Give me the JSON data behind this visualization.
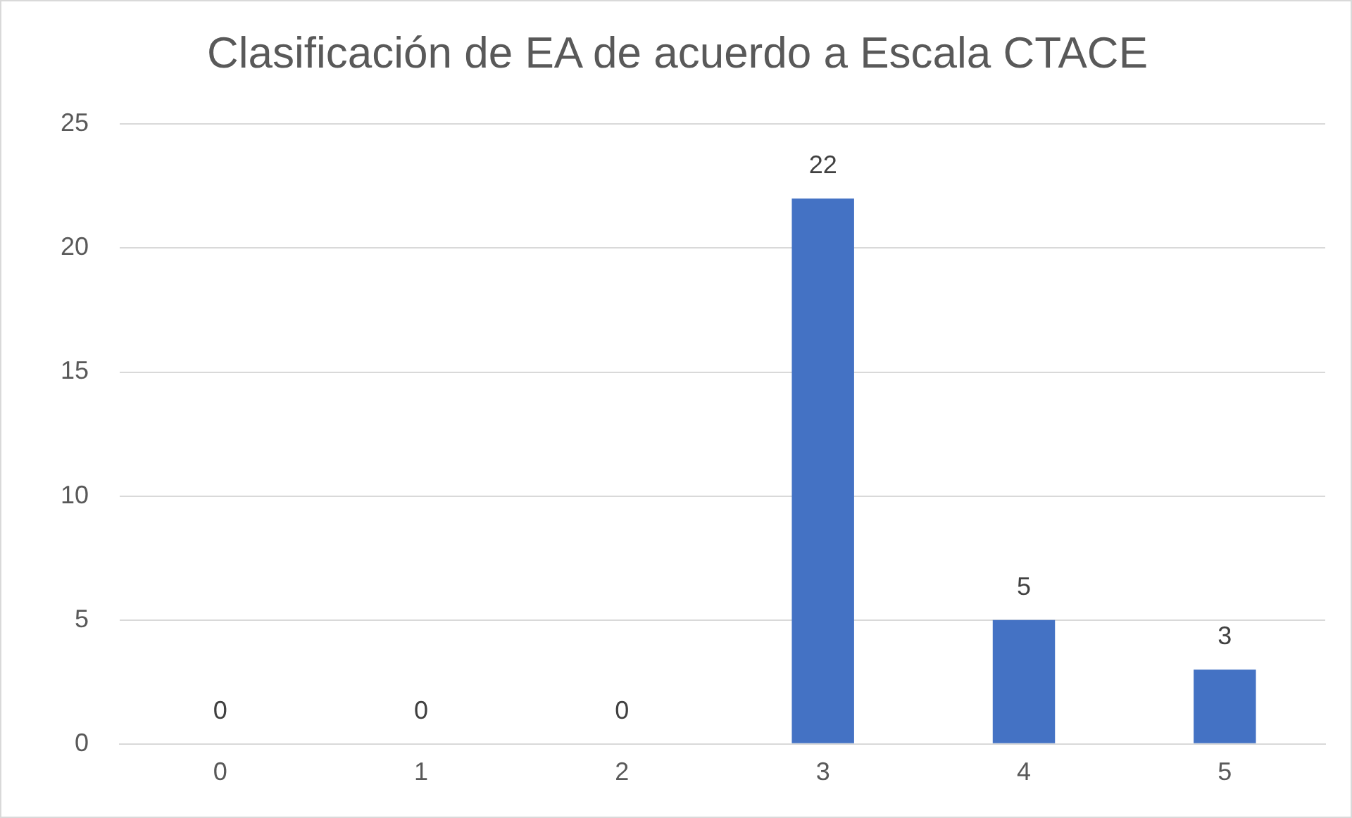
{
  "chart_data": {
    "type": "bar",
    "title": "Clasificación de EA de acuerdo a Escala CTACE",
    "categories": [
      "0",
      "1",
      "2",
      "3",
      "4",
      "5"
    ],
    "values": [
      0,
      0,
      0,
      22,
      5,
      3
    ],
    "color": "#4472c4",
    "ylim": [
      0,
      25
    ],
    "yticks": [
      0,
      5,
      10,
      15,
      20,
      25
    ],
    "grid": "y",
    "data_labels": true,
    "legend": false
  }
}
